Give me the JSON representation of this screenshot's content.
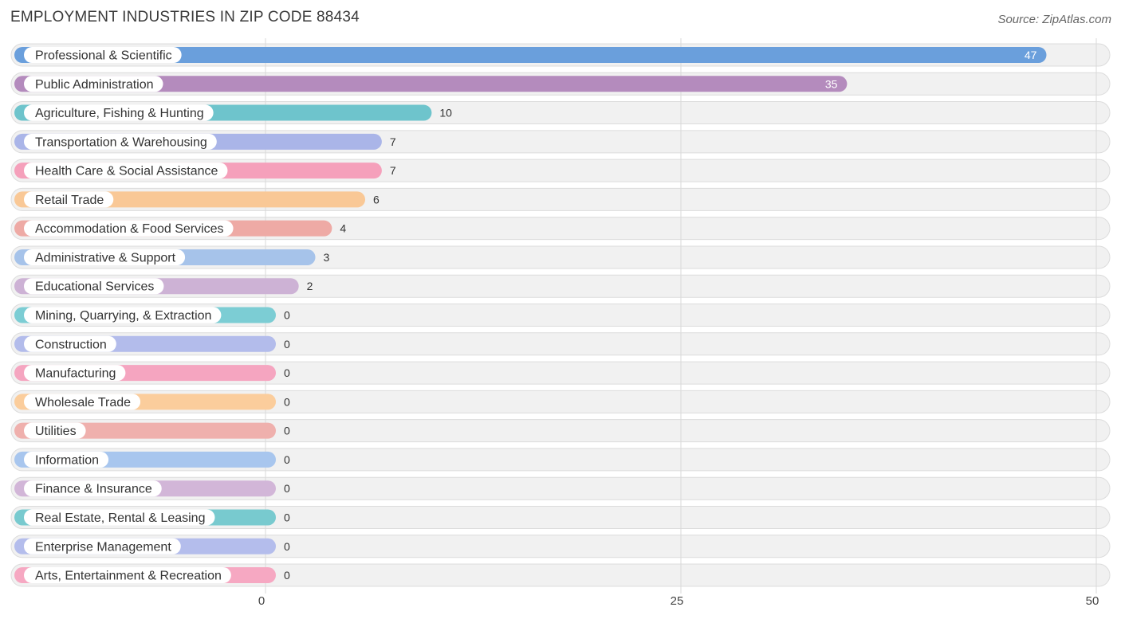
{
  "header": {
    "title": "EMPLOYMENT INDUSTRIES IN ZIP CODE 88434",
    "source": "Source: ZipAtlas.com"
  },
  "chart_data": {
    "type": "bar",
    "orientation": "horizontal",
    "title": "EMPLOYMENT INDUSTRIES IN ZIP CODE 88434",
    "xlabel": "",
    "ylabel": "",
    "xlim": [
      0,
      50
    ],
    "ticks": [
      0,
      25,
      50
    ],
    "grid": true,
    "categories": [
      "Professional & Scientific",
      "Public Administration",
      "Agriculture, Fishing & Hunting",
      "Transportation & Warehousing",
      "Health Care & Social Assistance",
      "Retail Trade",
      "Accommodation & Food Services",
      "Administrative & Support",
      "Educational Services",
      "Mining, Quarrying, & Extraction",
      "Construction",
      "Manufacturing",
      "Wholesale Trade",
      "Utilities",
      "Information",
      "Finance & Insurance",
      "Real Estate, Rental & Leasing",
      "Enterprise Management",
      "Arts, Entertainment & Recreation"
    ],
    "values": [
      47,
      35,
      10,
      7,
      7,
      6,
      4,
      3,
      2,
      0,
      0,
      0,
      0,
      0,
      0,
      0,
      0,
      0,
      0
    ],
    "colors": [
      "#6a9fdc",
      "#b48bbd",
      "#6ec4cc",
      "#aab5e8",
      "#f5a0bb",
      "#f9c896",
      "#eeaaa5",
      "#a6c3ea",
      "#cdb2d5",
      "#7ccdd4",
      "#b3bceb",
      "#f5a5c0",
      "#fbcd9c",
      "#efb0ad",
      "#a8c6ee",
      "#d2b6d8",
      "#78cacf",
      "#b4bdec",
      "#f6a8c2"
    ]
  }
}
